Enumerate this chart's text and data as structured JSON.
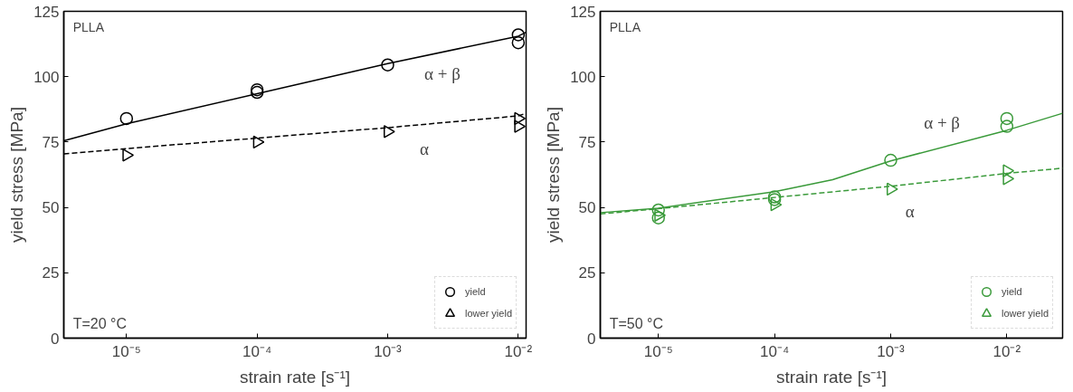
{
  "chart_data": [
    {
      "type": "scatter",
      "xlabel": "strain rate [s⁻¹]",
      "ylabel": "yield stress [MPa]",
      "log": "x",
      "grid": false,
      "legend": "bottom right",
      "xlim": [
        3.31e-06,
        0.01148
      ],
      "ylim": [
        0,
        125
      ],
      "xticks": [
        {
          "value": 1e-05,
          "label": "10⁻⁵"
        },
        {
          "value": 0.0001,
          "label": "10⁻⁴"
        },
        {
          "value": 0.001,
          "label": "10⁻³"
        },
        {
          "value": 0.01,
          "label": "10⁻²"
        }
      ],
      "yticks": [
        0,
        25,
        50,
        75,
        100,
        125
      ],
      "annotations": [
        "PLLA",
        "T=20 °C",
        "α + β",
        "α"
      ],
      "series": [
        {
          "type": "line",
          "color": "#000000",
          "line_style": "solid",
          "marker": "none",
          "x": [
            3.31e-06,
            1e-05,
            0.0001,
            0.001,
            0.01,
            0.01148
          ],
          "values": [
            75.5,
            82,
            93.5,
            105,
            115.5,
            117
          ]
        },
        {
          "type": "line",
          "color": "#000000",
          "line_style": "dashed",
          "marker": "none",
          "x": [
            3.31e-06,
            1e-05,
            0.0001,
            0.001,
            0.01,
            0.01148
          ],
          "values": [
            70.5,
            72.5,
            76.5,
            80.5,
            85,
            86
          ]
        },
        {
          "type": "scatter",
          "name": "yield",
          "color": "#000000",
          "marker": "circle",
          "x": [
            1e-05,
            0.0001,
            0.0001,
            0.001,
            0.01,
            0.01
          ],
          "values": [
            84,
            95,
            94,
            104.5,
            116,
            113
          ]
        },
        {
          "type": "scatter",
          "name": "lower yield",
          "color": "#000000",
          "marker": "triangle",
          "x": [
            1e-05,
            0.0001,
            0.001,
            0.01,
            0.01
          ],
          "values": [
            70,
            75,
            79,
            84,
            81
          ]
        }
      ]
    },
    {
      "type": "scatter",
      "xlabel": "strain rate [s⁻¹]",
      "ylabel": "yield stress [MPa]",
      "log": "x",
      "grid": false,
      "legend": "bottom right",
      "xlim": [
        3.16e-06,
        0.0302
      ],
      "ylim": [
        0,
        125
      ],
      "xticks": [
        {
          "value": 1e-05,
          "label": "10⁻⁵"
        },
        {
          "value": 0.0001,
          "label": "10⁻⁴"
        },
        {
          "value": 0.001,
          "label": "10⁻³"
        },
        {
          "value": 0.01,
          "label": "10⁻²"
        }
      ],
      "yticks": [
        0,
        25,
        50,
        75,
        100,
        125
      ],
      "annotations": [
        "PLLA",
        "T=50 °C",
        "α + β",
        "α"
      ],
      "series": [
        {
          "type": "line",
          "color": "#3a9a3a",
          "line_style": "solid",
          "marker": "none",
          "x": [
            3.16e-06,
            1e-05,
            0.0001,
            0.000316,
            0.001,
            0.01,
            0.0302
          ],
          "values": [
            48,
            49.7,
            56,
            60.6,
            67.8,
            79.5,
            86
          ]
        },
        {
          "type": "line",
          "color": "#3a9a3a",
          "line_style": "dashed",
          "marker": "none",
          "x": [
            3.16e-06,
            1e-05,
            0.0001,
            0.001,
            0.01,
            0.0302
          ],
          "values": [
            47.5,
            49.5,
            53.8,
            58.1,
            63,
            65
          ]
        },
        {
          "type": "scatter",
          "name": "yield",
          "color": "#3a9a3a",
          "marker": "circle",
          "x": [
            1e-05,
            1e-05,
            0.0001,
            0.0001,
            0.001,
            0.01,
            0.01
          ],
          "values": [
            49,
            46,
            54,
            53,
            68,
            84,
            81
          ]
        },
        {
          "type": "scatter",
          "name": "lower yield",
          "color": "#3a9a3a",
          "marker": "triangle",
          "x": [
            1e-05,
            0.0001,
            0.001,
            0.01,
            0.01
          ],
          "values": [
            47,
            51,
            57,
            64,
            61
          ]
        }
      ]
    }
  ]
}
